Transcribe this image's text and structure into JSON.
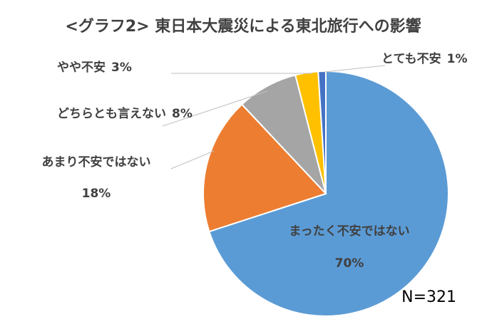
{
  "chart_data": {
    "type": "pie",
    "title": "<グラフ2> 東日本大震災による東北旅行への影響",
    "categories": [
      "まったく不安ではない",
      "あまり不安ではない",
      "どちらとも言えない",
      "やや不安",
      "とても不安"
    ],
    "values": [
      70,
      18,
      8,
      3,
      1
    ],
    "value_labels": [
      "70%",
      "18%",
      "8%",
      "3%",
      "1%"
    ],
    "colors": [
      "#5b9bd5",
      "#ed7d31",
      "#a5a5a5",
      "#ffc000",
      "#4472c4"
    ],
    "annotation": "N=321"
  }
}
